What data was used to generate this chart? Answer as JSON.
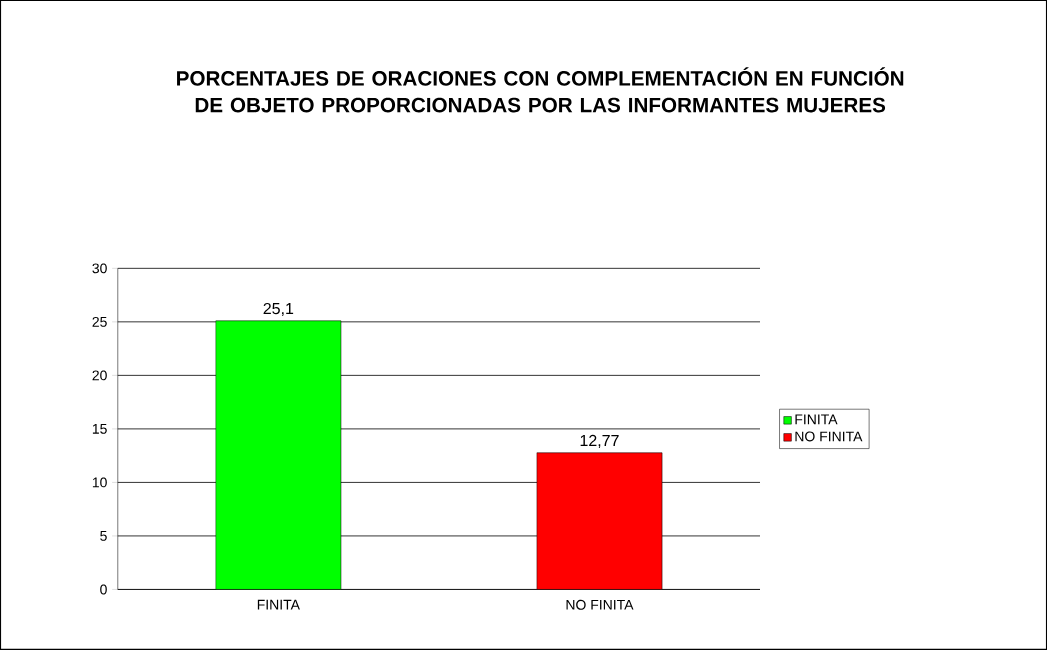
{
  "chart_data": {
    "type": "bar",
    "title": "PORCENTAJES DE ORACIONES CON COMPLEMENTACIÓN EN FUNCIÓN DE OBJETO PROPORCIONADAS POR LAS INFORMANTES MUJERES",
    "categories": [
      "FINITA",
      "NO FINITA"
    ],
    "series": [
      {
        "name": "FINITA",
        "color": "#00ff00",
        "values": [
          25.1,
          null
        ],
        "value_labels": [
          "25,1",
          null
        ]
      },
      {
        "name": "NO FINITA",
        "color": "#ff0000",
        "values": [
          null,
          12.77
        ],
        "value_labels": [
          null,
          "12,77"
        ]
      }
    ],
    "ylim": [
      0,
      30
    ],
    "yticks": [
      0,
      5,
      10,
      15,
      20,
      25,
      30
    ],
    "grid": "y",
    "legend": "right"
  }
}
